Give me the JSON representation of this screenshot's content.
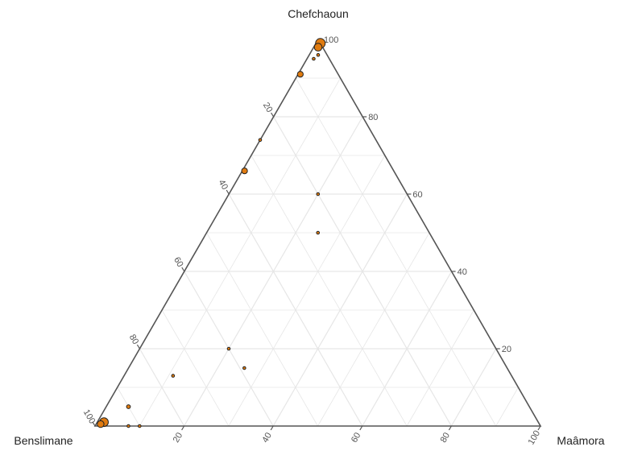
{
  "chart_data": {
    "type": "scatter",
    "subtype": "ternary",
    "title": "",
    "axes": {
      "top": "Chefchaoun",
      "left": "Benslimane",
      "right": "Maâmora"
    },
    "ticks": [
      20,
      40,
      60,
      80,
      100
    ],
    "grid": true,
    "legend": "none",
    "colors": {
      "point_fill": "#e07b10",
      "point_stroke": "#222222",
      "frame": "#555555",
      "grid": "#e6e6e6"
    },
    "points": [
      {
        "chefchaoun": 99,
        "maamora": 1,
        "size": 9
      },
      {
        "chefchaoun": 98,
        "maamora": 1,
        "size": 7
      },
      {
        "chefchaoun": 96,
        "maamora": 2,
        "size": 2
      },
      {
        "chefchaoun": 95,
        "maamora": 1.5,
        "size": 2
      },
      {
        "chefchaoun": 91,
        "maamora": 0.5,
        "size": 5
      },
      {
        "chefchaoun": 74,
        "maamora": 0,
        "size": 2
      },
      {
        "chefchaoun": 66,
        "maamora": 0.5,
        "size": 5
      },
      {
        "chefchaoun": 60,
        "maamora": 20,
        "size": 2
      },
      {
        "chefchaoun": 50,
        "maamora": 25,
        "size": 2
      },
      {
        "chefchaoun": 20,
        "maamora": 20,
        "size": 2
      },
      {
        "chefchaoun": 15,
        "maamora": 26,
        "size": 2
      },
      {
        "chefchaoun": 13,
        "maamora": 11,
        "size": 2
      },
      {
        "chefchaoun": 5,
        "maamora": 5,
        "size": 3
      },
      {
        "chefchaoun": 1,
        "maamora": 1.5,
        "size": 8
      },
      {
        "chefchaoun": 0.5,
        "maamora": 1,
        "size": 6
      },
      {
        "chefchaoun": 0,
        "maamora": 7.5,
        "size": 2
      },
      {
        "chefchaoun": 0,
        "maamora": 10,
        "size": 2
      }
    ]
  }
}
